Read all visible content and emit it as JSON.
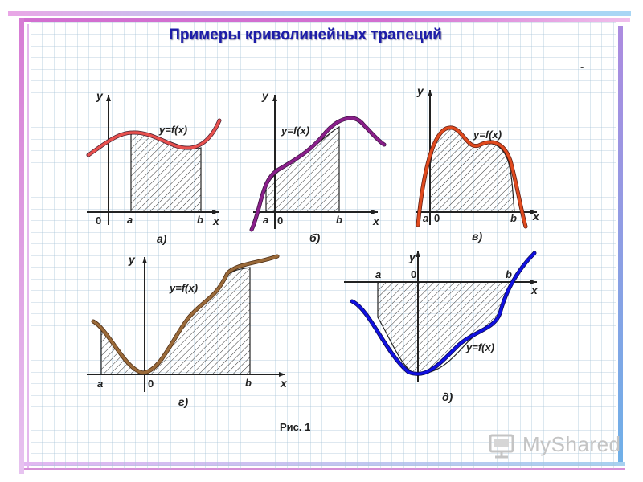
{
  "title": "Примеры криволинейных трапеций",
  "dash_mark": "-",
  "figure_caption": "Рис. 1",
  "watermark_text": "MyShared",
  "graph_labels": {
    "y": "y",
    "x": "x",
    "origin": "0",
    "a": "a",
    "b": "b",
    "function": "y=f(x)"
  },
  "panels": [
    {
      "id": "a",
      "letter": "а)",
      "curve_color": "#e8504e"
    },
    {
      "id": "b",
      "letter": "б)",
      "curve_color": "#8a1f8a"
    },
    {
      "id": "c",
      "letter": "в)",
      "curve_color": "#e04a1e"
    },
    {
      "id": "d",
      "letter": "г)",
      "curve_color": "#9a6a3a"
    },
    {
      "id": "e",
      "letter": "д)",
      "curve_color": "#1010e0"
    }
  ],
  "frame_colors": {
    "top_bar": "#b8d8ef",
    "left_bar": "#c9a0dc",
    "right_bar": "#c9a0dc",
    "bottom_bar": "#c9a0dc",
    "top_accent": "#d070d0"
  }
}
